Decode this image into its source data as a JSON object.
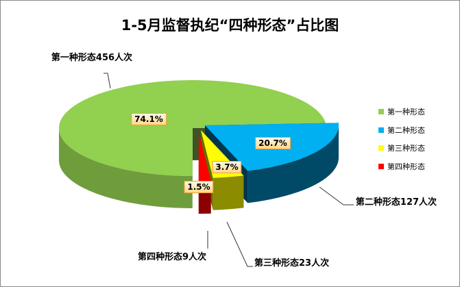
{
  "chart_data": {
    "type": "pie",
    "title": "1-5月监督执纪“四种形态”占比图",
    "categories": [
      "第一种形态",
      "第二种形态",
      "第三种形态",
      "第四种形态"
    ],
    "values": [
      456,
      127,
      23,
      9
    ],
    "percent_labels": [
      "74.1%",
      "20.7%",
      "3.7%",
      "1.5%"
    ],
    "callout_labels": [
      "第一种形态456人次",
      "第二种形态127人次",
      "第三种形态23人次",
      "第四种形态9人次"
    ],
    "colors": [
      "#92d050",
      "#00b0f0",
      "#ffff00",
      "#ff0000"
    ],
    "side_colors": [
      "#6f9d3c",
      "#004a68",
      "#8c8c00",
      "#8c0000"
    ],
    "style": "3d-exploded",
    "legend_position": "right"
  }
}
